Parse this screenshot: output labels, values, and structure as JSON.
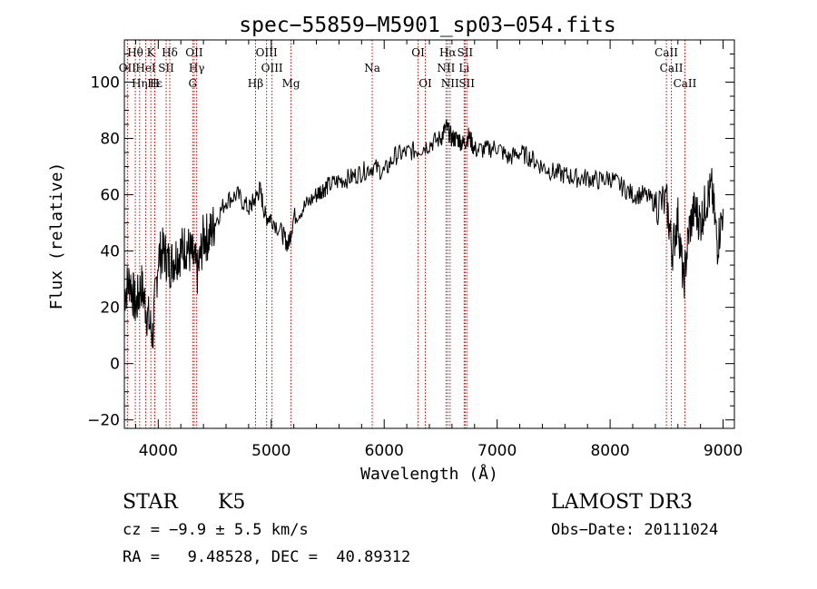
{
  "chart_data": {
    "type": "line",
    "title": "spec−55859−M5901_sp03−054.fits",
    "xlabel": "Wavelength (Å)",
    "ylabel": "Flux (relative)",
    "xlim": [
      3700,
      9100
    ],
    "ylim": [
      -23,
      115
    ],
    "xticks": [
      4000,
      5000,
      6000,
      7000,
      8000,
      9000
    ],
    "yticks": [
      -20,
      0,
      20,
      40,
      60,
      80,
      100
    ],
    "grid": false,
    "series": [
      {
        "name": "spectrum",
        "x": [
          3700,
          3750,
          3800,
          3850,
          3900,
          3950,
          4000,
          4050,
          4100,
          4150,
          4200,
          4250,
          4300,
          4350,
          4400,
          4450,
          4500,
          4600,
          4700,
          4800,
          4850,
          4900,
          4950,
          5000,
          5100,
          5150,
          5200,
          5300,
          5400,
          5450,
          5500,
          5600,
          5700,
          5800,
          5900,
          6000,
          6100,
          6200,
          6300,
          6400,
          6500,
          6550,
          6600,
          6650,
          6700,
          6750,
          6800,
          6900,
          7000,
          7100,
          7200,
          7300,
          7400,
          7500,
          7600,
          7700,
          7800,
          7900,
          8000,
          8100,
          8200,
          8300,
          8400,
          8500,
          8550,
          8600,
          8650,
          8700,
          8750,
          8800,
          8850,
          8900,
          8950,
          9000
        ],
        "y": [
          25,
          30,
          20,
          28,
          18,
          10,
          38,
          40,
          35,
          38,
          40,
          42,
          38,
          32,
          45,
          45,
          50,
          58,
          60,
          55,
          58,
          62,
          52,
          52,
          46,
          42,
          52,
          56,
          60,
          62,
          63,
          65,
          66,
          68,
          70,
          68,
          74,
          75,
          76,
          78,
          80,
          84,
          80,
          80,
          78,
          81,
          76,
          76,
          77,
          73,
          75,
          73,
          70,
          68,
          67,
          66,
          66,
          65,
          66,
          63,
          60,
          60,
          57,
          57,
          40,
          52,
          28,
          48,
          55,
          50,
          58,
          62,
          42,
          55
        ]
      }
    ],
    "lines": [
      {
        "name": "Hθ",
        "x": 3797,
        "row": 1
      },
      {
        "name": "OII",
        "x": 3727,
        "row": 2
      },
      {
        "name": "Hε",
        "x": 3970,
        "row": 3
      },
      {
        "name": "Hη",
        "x": 3835,
        "row": 3
      },
      {
        "name": "K",
        "x": 3934,
        "row": 1
      },
      {
        "name": "HeI",
        "x": 3889,
        "row": 2
      },
      {
        "name": "H",
        "x": 3968,
        "row": 3
      },
      {
        "name": "SII",
        "x": 4070,
        "row": 2
      },
      {
        "name": "Hδ",
        "x": 4102,
        "row": 1
      },
      {
        "name": "OII",
        "x": 4318,
        "row": 1
      },
      {
        "name": "Hγ",
        "x": 4340,
        "row": 2
      },
      {
        "name": "G",
        "x": 4305,
        "row": 3
      },
      {
        "name": "OIII",
        "x": 4959,
        "row": 1
      },
      {
        "name": "OIII",
        "x": 5007,
        "row": 2
      },
      {
        "name": "Hβ",
        "x": 4861,
        "row": 3
      },
      {
        "name": "Mg",
        "x": 5175,
        "row": 3
      },
      {
        "name": "Na",
        "x": 5894,
        "row": 2
      },
      {
        "name": "OI",
        "x": 6300,
        "row": 1
      },
      {
        "name": "OI",
        "x": 6364,
        "row": 3
      },
      {
        "name": "Hα",
        "x": 6563,
        "row": 1
      },
      {
        "name": "NII",
        "x": 6548,
        "row": 2
      },
      {
        "name": "NII",
        "x": 6583,
        "row": 3
      },
      {
        "name": "SII",
        "x": 6716,
        "row": 1
      },
      {
        "name": "Li",
        "x": 6708,
        "row": 2
      },
      {
        "name": "SII",
        "x": 6731,
        "row": 3
      },
      {
        "name": "CaII",
        "x": 8498,
        "row": 1
      },
      {
        "name": "CaII",
        "x": 8542,
        "row": 2
      },
      {
        "name": "CaII",
        "x": 8662,
        "row": 3
      }
    ]
  },
  "info": {
    "class": "STAR",
    "subclass": "K5",
    "survey": "LAMOST DR3",
    "cz": "cz = −9.9 ± 5.5 km/s",
    "obs_date": "Obs−Date: 20111024",
    "radec": "RA =   9.48528, DEC =  40.89312"
  },
  "colors": {
    "spectrum": "#000000",
    "line_marker": "#cc0000"
  }
}
